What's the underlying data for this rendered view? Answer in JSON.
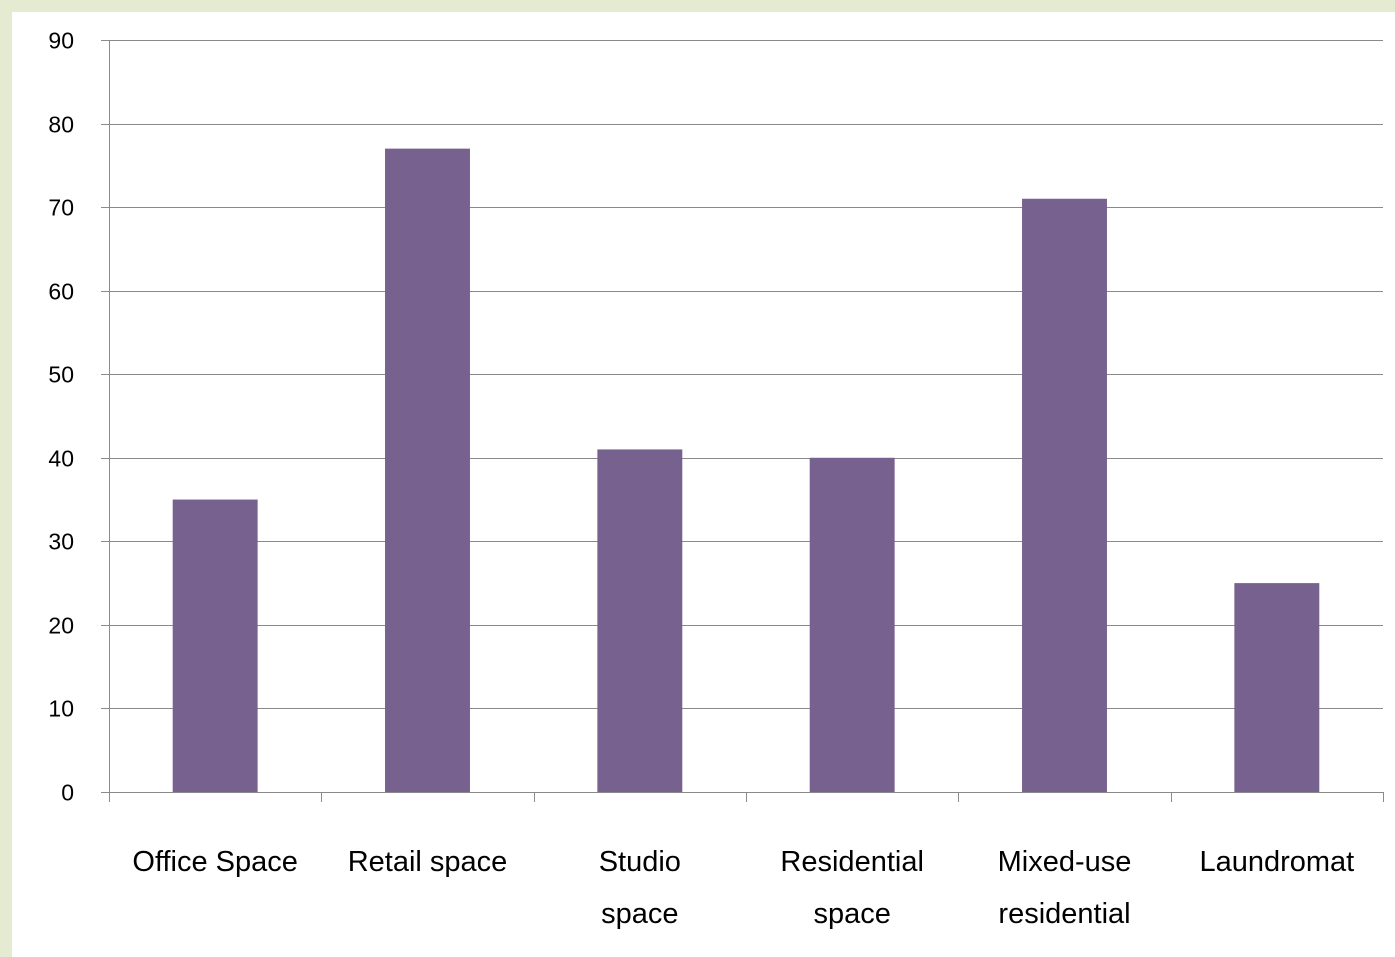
{
  "chart_data": {
    "type": "bar",
    "categories": [
      [
        "Office Space"
      ],
      [
        "Retail space"
      ],
      [
        "Studio",
        "space"
      ],
      [
        "Residential",
        "space"
      ],
      [
        "Mixed-use",
        "residential"
      ],
      [
        "Laundromat"
      ]
    ],
    "values": [
      35,
      77,
      41,
      40,
      71,
      25
    ],
    "ylim": [
      0,
      90
    ],
    "yticks": [
      0,
      10,
      20,
      30,
      40,
      50,
      60,
      70,
      80,
      90
    ],
    "grid": true,
    "legend": "none",
    "colors": {
      "bar": "#77618f",
      "frame_background": "#e4ebd1",
      "plot_background": "#ffffff",
      "grid": "#8a8a8a"
    }
  }
}
